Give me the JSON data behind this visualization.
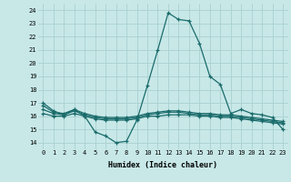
{
  "title": "",
  "xlabel": "Humidex (Indice chaleur)",
  "ylabel": "",
  "xlim": [
    -0.5,
    23.5
  ],
  "ylim": [
    13.5,
    24.5
  ],
  "yticks": [
    14,
    15,
    16,
    17,
    18,
    19,
    20,
    21,
    22,
    23,
    24
  ],
  "xticks": [
    0,
    1,
    2,
    3,
    4,
    5,
    6,
    7,
    8,
    9,
    10,
    11,
    12,
    13,
    14,
    15,
    16,
    17,
    18,
    19,
    20,
    21,
    22,
    23
  ],
  "bg_color": "#c8e8e8",
  "grid_color": "#aad0d0",
  "line_color": "#1a6b6b",
  "line1": [
    17.0,
    16.4,
    16.1,
    16.5,
    16.0,
    14.8,
    14.5,
    14.0,
    14.1,
    15.7,
    18.3,
    21.0,
    23.8,
    23.3,
    23.2,
    21.5,
    19.0,
    18.4,
    16.2,
    16.5,
    16.2,
    16.1,
    15.9,
    15.0
  ],
  "line2": [
    16.5,
    16.2,
    16.1,
    16.4,
    16.1,
    15.9,
    15.8,
    15.8,
    15.8,
    15.9,
    16.1,
    16.2,
    16.3,
    16.3,
    16.2,
    16.1,
    16.1,
    16.0,
    16.0,
    15.9,
    15.8,
    15.7,
    15.6,
    15.5
  ],
  "line3": [
    16.8,
    16.3,
    16.2,
    16.5,
    16.2,
    16.0,
    15.9,
    15.9,
    15.9,
    16.0,
    16.2,
    16.3,
    16.4,
    16.4,
    16.3,
    16.2,
    16.2,
    16.1,
    16.1,
    16.0,
    15.9,
    15.8,
    15.7,
    15.6
  ],
  "line4": [
    16.2,
    16.0,
    16.0,
    16.2,
    16.0,
    15.8,
    15.7,
    15.7,
    15.7,
    15.8,
    16.0,
    16.0,
    16.1,
    16.1,
    16.1,
    16.0,
    16.0,
    15.9,
    15.9,
    15.8,
    15.7,
    15.6,
    15.5,
    15.4
  ]
}
